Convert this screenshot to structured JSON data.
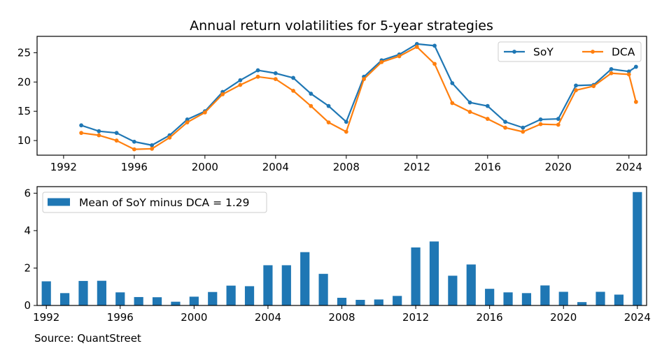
{
  "figure": {
    "source": "Source: QuantStreet"
  },
  "chart_data": [
    {
      "type": "line",
      "title": "Annual return volatilities for 5-year strategies",
      "xlabel": "",
      "ylabel": "",
      "xlim": [
        1990.5,
        2025.0
      ],
      "ylim": [
        7.5,
        27.8
      ],
      "xticks": [
        1992,
        1996,
        2000,
        2004,
        2008,
        2012,
        2016,
        2020,
        2024
      ],
      "yticks": [
        10,
        15,
        20,
        25
      ],
      "grid": false,
      "legend_position": "top-right",
      "series": [
        {
          "name": "SoY",
          "color": "#1f77b4",
          "x": [
            1993,
            1994,
            1995,
            1996,
            1997,
            1998,
            1999,
            2000,
            2001,
            2002,
            2003,
            2004,
            2005,
            2006,
            2007,
            2008,
            2009,
            2010,
            2011,
            2012,
            2013,
            2014,
            2015,
            2016,
            2017,
            2018,
            2019,
            2020,
            2021,
            2022,
            2023,
            2024,
            2024.4
          ],
          "y": [
            12.6,
            11.6,
            11.3,
            9.8,
            9.2,
            10.9,
            13.6,
            15.0,
            18.3,
            20.3,
            22.0,
            21.5,
            20.7,
            18.0,
            15.9,
            13.2,
            20.9,
            23.7,
            24.7,
            26.5,
            26.2,
            19.8,
            16.5,
            15.9,
            13.2,
            12.2,
            13.6,
            13.7,
            19.4,
            19.5,
            22.2,
            21.8,
            22.6
          ]
        },
        {
          "name": "DCA",
          "color": "#ff7f0e",
          "x": [
            1993,
            1994,
            1995,
            1996,
            1997,
            1998,
            1999,
            2000,
            2001,
            2002,
            2003,
            2004,
            2005,
            2006,
            2007,
            2008,
            2009,
            2010,
            2011,
            2012,
            2013,
            2014,
            2015,
            2016,
            2017,
            2018,
            2019,
            2020,
            2021,
            2022,
            2023,
            2024,
            2024.4
          ],
          "y": [
            11.3,
            10.9,
            10.0,
            8.5,
            8.6,
            10.5,
            13.1,
            14.8,
            17.9,
            19.5,
            20.9,
            20.5,
            18.5,
            15.9,
            13.1,
            11.5,
            20.5,
            23.4,
            24.4,
            26.0,
            23.1,
            16.4,
            14.9,
            13.7,
            12.2,
            11.5,
            12.8,
            12.7,
            18.6,
            19.3,
            21.5,
            21.3,
            16.6
          ]
        }
      ]
    },
    {
      "type": "bar",
      "title": "",
      "xlabel": "",
      "ylabel": "",
      "ylim": [
        0,
        6.35
      ],
      "yticks": [
        0,
        2,
        4,
        6
      ],
      "grid": false,
      "legend_position": "top-left",
      "xtick_labels": [
        "1992",
        "1996",
        "2000",
        "2004",
        "2008",
        "2012",
        "2016",
        "2020",
        "2024"
      ],
      "xtick_positions": [
        1992,
        1996,
        2000,
        2004,
        2008,
        2012,
        2016,
        2020,
        2024
      ],
      "series": [
        {
          "name": "Mean of SoY minus DCA = 1.29",
          "color": "#1f77b4",
          "x": [
            1992,
            1993,
            1994,
            1995,
            1996,
            1997,
            1998,
            1999,
            2000,
            2001,
            2002,
            2003,
            2004,
            2005,
            2006,
            2007,
            2008,
            2009,
            2010,
            2011,
            2012,
            2013,
            2014,
            2015,
            2016,
            2017,
            2018,
            2019,
            2020,
            2021,
            2022,
            2023,
            2024
          ],
          "values": [
            1.29,
            0.66,
            1.31,
            1.32,
            0.7,
            0.45,
            0.44,
            0.2,
            0.47,
            0.72,
            1.06,
            1.03,
            2.15,
            2.15,
            2.85,
            1.69,
            0.41,
            0.3,
            0.32,
            0.51,
            3.1,
            3.42,
            1.59,
            2.19,
            0.89,
            0.7,
            0.66,
            1.07,
            0.73,
            0.18,
            0.73,
            0.58,
            6.06
          ]
        }
      ]
    }
  ]
}
